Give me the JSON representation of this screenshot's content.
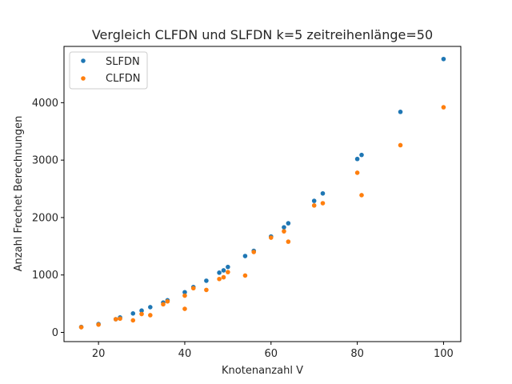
{
  "chart_data": {
    "type": "scatter",
    "title": "Vergleich CLFDN und SLFDN k=5 zeitreihenlänge=50",
    "xlabel": "Knotenanzahl V",
    "ylabel": "Anzahl Frechet Berechnungen",
    "xlim": [
      12,
      104
    ],
    "ylim": [
      -160,
      4980
    ],
    "xticks": [
      20,
      40,
      60,
      80,
      100
    ],
    "yticks": [
      0,
      1000,
      2000,
      3000,
      4000
    ],
    "legend_position": "upper-left",
    "grid": false,
    "series": [
      {
        "name": "SLFDN",
        "color": "#1f77b4",
        "points": [
          [
            16,
            95
          ],
          [
            20,
            145
          ],
          [
            24,
            230
          ],
          [
            25,
            260
          ],
          [
            28,
            330
          ],
          [
            30,
            380
          ],
          [
            32,
            440
          ],
          [
            35,
            520
          ],
          [
            36,
            560
          ],
          [
            40,
            700
          ],
          [
            42,
            790
          ],
          [
            45,
            900
          ],
          [
            48,
            1040
          ],
          [
            49,
            1080
          ],
          [
            50,
            1140
          ],
          [
            54,
            1330
          ],
          [
            56,
            1420
          ],
          [
            60,
            1670
          ],
          [
            63,
            1830
          ],
          [
            64,
            1900
          ],
          [
            70,
            2290
          ],
          [
            72,
            2420
          ],
          [
            80,
            3020
          ],
          [
            81,
            3090
          ],
          [
            90,
            3840
          ],
          [
            100,
            4760
          ]
        ]
      },
      {
        "name": "CLFDN",
        "color": "#ff7f0e",
        "points": [
          [
            16,
            90
          ],
          [
            20,
            135
          ],
          [
            24,
            230
          ],
          [
            25,
            240
          ],
          [
            28,
            210
          ],
          [
            30,
            320
          ],
          [
            32,
            300
          ],
          [
            35,
            490
          ],
          [
            36,
            540
          ],
          [
            40,
            640
          ],
          [
            40,
            410
          ],
          [
            42,
            770
          ],
          [
            45,
            740
          ],
          [
            48,
            930
          ],
          [
            49,
            960
          ],
          [
            50,
            1050
          ],
          [
            54,
            990
          ],
          [
            56,
            1400
          ],
          [
            60,
            1650
          ],
          [
            63,
            1760
          ],
          [
            64,
            1580
          ],
          [
            70,
            2210
          ],
          [
            72,
            2250
          ],
          [
            80,
            2780
          ],
          [
            81,
            2390
          ],
          [
            90,
            3260
          ],
          [
            100,
            3920
          ]
        ]
      }
    ]
  }
}
